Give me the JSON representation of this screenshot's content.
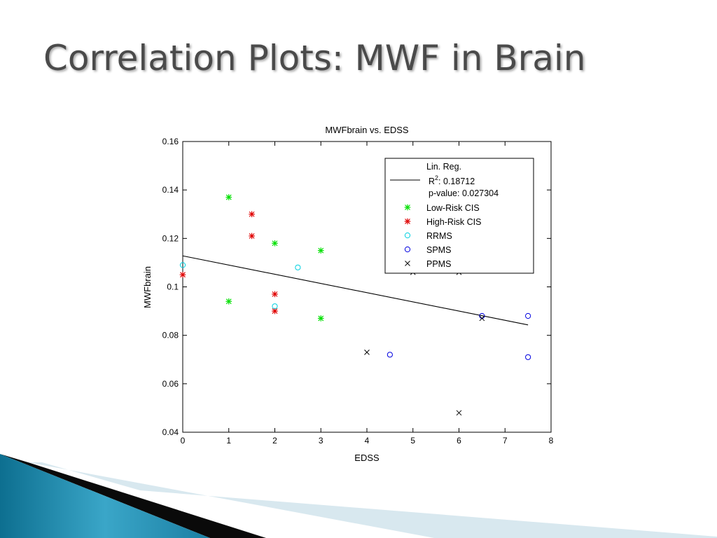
{
  "slide": {
    "title": "Correlation Plots: MWF in Brain"
  },
  "chart_data": {
    "type": "scatter",
    "title": "MWFbrain vs. EDSS",
    "xlabel": "EDSS",
    "ylabel": "MWFbrain",
    "xlim": [
      0,
      8
    ],
    "ylim": [
      0.04,
      0.16
    ],
    "xticks": [
      "0",
      "1",
      "2",
      "3",
      "4",
      "5",
      "6",
      "7",
      "8"
    ],
    "yticks": [
      "0.04",
      "0.06",
      "0.08",
      "0.1",
      "0.12",
      "0.14",
      "0.16"
    ],
    "grid": false,
    "legend_position": "top-right",
    "regression": {
      "label": "Lin. Reg.",
      "r2_label": "R",
      "r2_sup": "2",
      "r2_text": ": 0.18712",
      "p_text": "p-value: 0.027304",
      "x": [
        0,
        7.5
      ],
      "y": [
        0.1128,
        0.0843
      ],
      "color": "#000000"
    },
    "series": [
      {
        "name": "Low-Risk CIS",
        "marker": "asterisk",
        "color": "#00e000",
        "points": [
          [
            1,
            0.137
          ],
          [
            1,
            0.094
          ],
          [
            2,
            0.118
          ],
          [
            3,
            0.115
          ],
          [
            3,
            0.087
          ]
        ]
      },
      {
        "name": "High-Risk CIS",
        "marker": "asterisk",
        "color": "#e00000",
        "points": [
          [
            0,
            0.105
          ],
          [
            1.5,
            0.13
          ],
          [
            1.5,
            0.121
          ],
          [
            2,
            0.097
          ],
          [
            2,
            0.09
          ]
        ]
      },
      {
        "name": "RRMS",
        "marker": "circle",
        "color": "#00d0e0",
        "points": [
          [
            0,
            0.109
          ],
          [
            2,
            0.092
          ],
          [
            2.5,
            0.108
          ]
        ]
      },
      {
        "name": "SPMS",
        "marker": "circle",
        "color": "#0000e0",
        "points": [
          [
            4.5,
            0.072
          ],
          [
            6.5,
            0.088
          ],
          [
            7.5,
            0.088
          ],
          [
            7.5,
            0.071
          ]
        ]
      },
      {
        "name": "PPMS",
        "marker": "x",
        "color": "#000000",
        "points": [
          [
            4,
            0.073
          ],
          [
            5,
            0.106
          ],
          [
            6,
            0.106
          ],
          [
            6,
            0.048
          ],
          [
            6.5,
            0.087
          ]
        ]
      }
    ]
  }
}
